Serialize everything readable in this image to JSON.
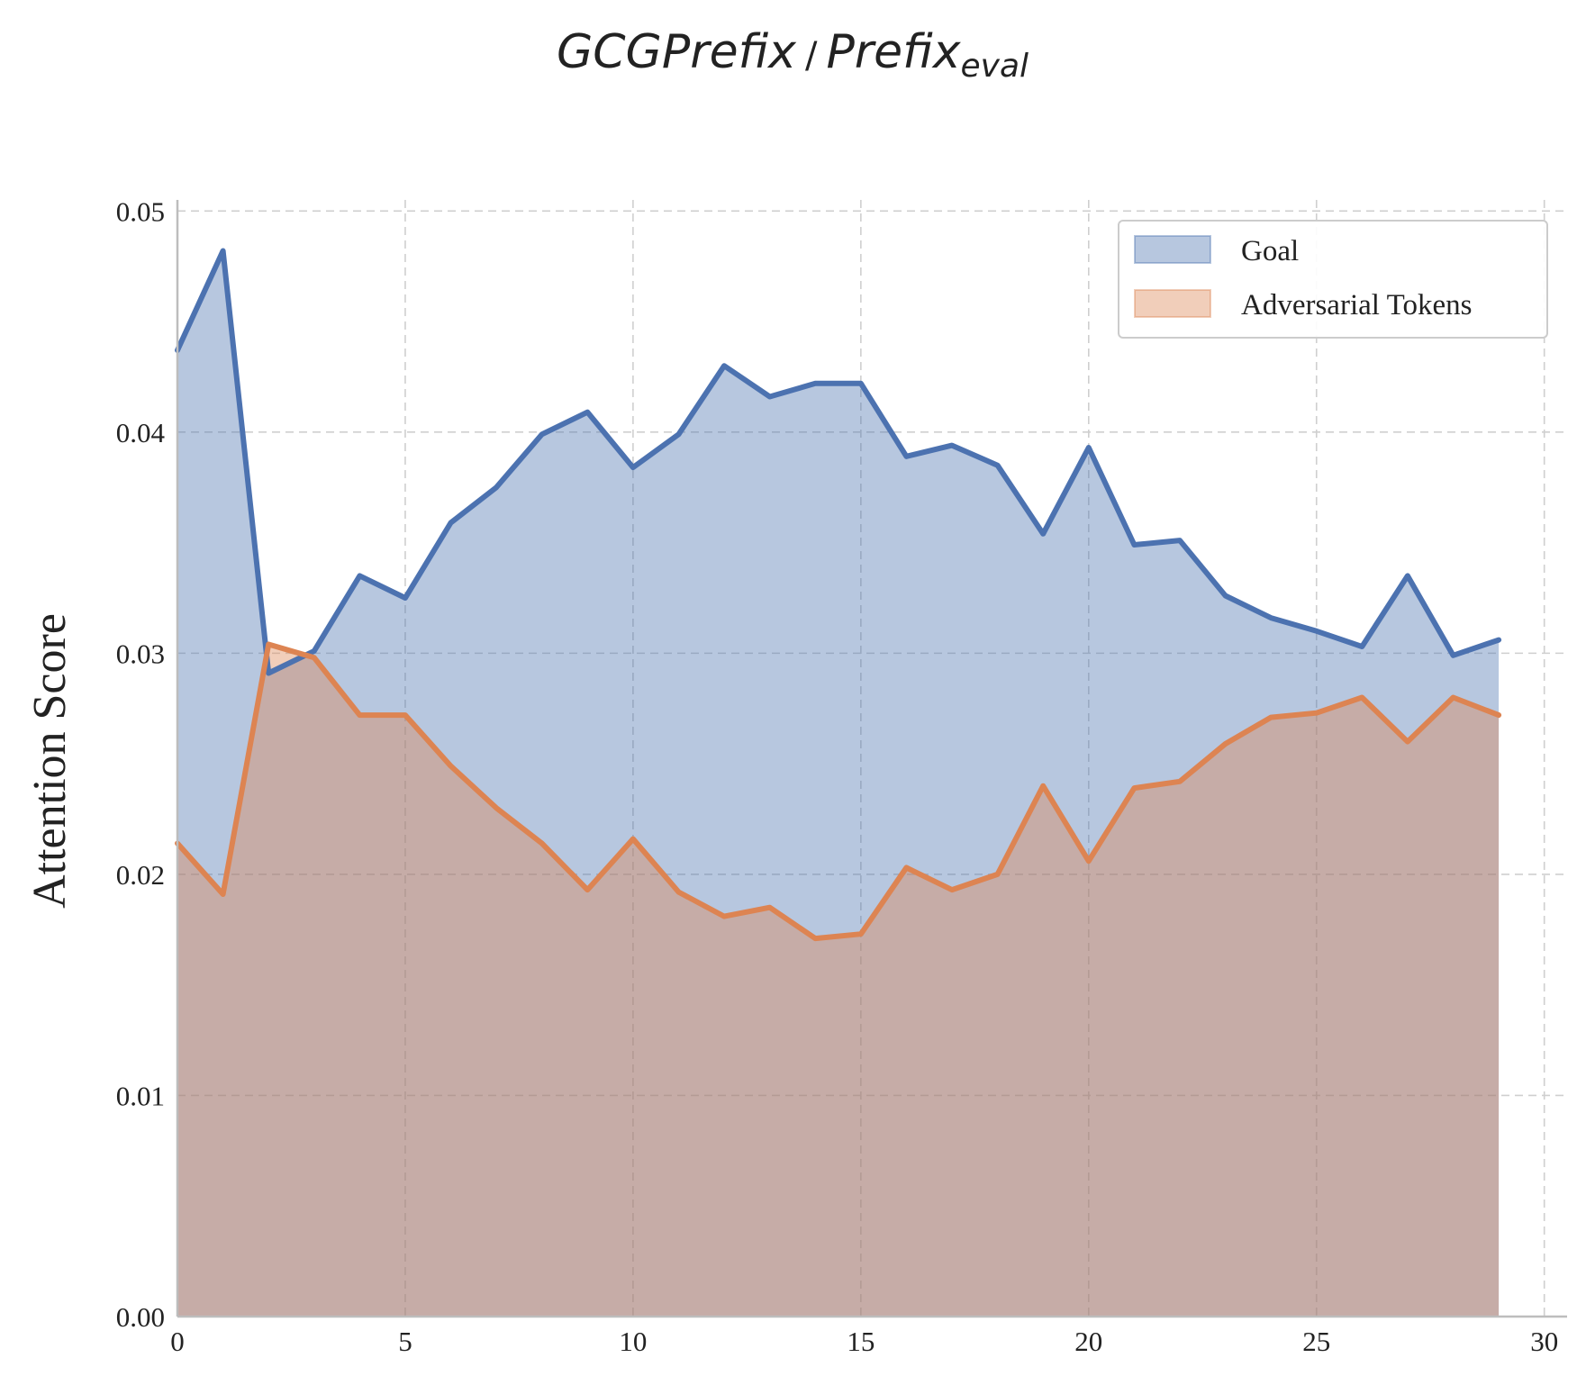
{
  "chart_data": {
    "type": "area",
    "title": {
      "left": "GCGPrefix",
      "separator": "/",
      "right": "Prefix",
      "right_subscript": "eval"
    },
    "xlabel": "",
    "ylabel": "Attention Score",
    "xlim": [
      0,
      30.5
    ],
    "ylim": [
      0,
      0.0505
    ],
    "xticks": [
      0,
      5,
      10,
      15,
      20,
      25,
      30
    ],
    "xtick_labels": [
      "0",
      "5",
      "10",
      "15",
      "20",
      "25",
      "30"
    ],
    "yticks": [
      0,
      0.01,
      0.02,
      0.03,
      0.04,
      0.05
    ],
    "ytick_labels": [
      "0.00",
      "0.01",
      "0.02",
      "0.03",
      "0.04",
      "0.05"
    ],
    "grid": true,
    "legend_position": "top-right",
    "x": [
      0,
      1,
      2,
      3,
      4,
      5,
      6,
      7,
      8,
      9,
      10,
      11,
      12,
      13,
      14,
      15,
      16,
      17,
      18,
      19,
      20,
      21,
      22,
      23,
      24,
      25,
      26,
      27,
      28,
      29
    ],
    "series": [
      {
        "name": "Goal",
        "line_color": "#4c72b0",
        "fill_color": "#4c72b0",
        "values": [
          0.0437,
          0.0482,
          0.0291,
          0.0301,
          0.0335,
          0.0325,
          0.0359,
          0.0375,
          0.0399,
          0.0409,
          0.0384,
          0.0399,
          0.043,
          0.0416,
          0.0422,
          0.0422,
          0.0389,
          0.0394,
          0.0385,
          0.0354,
          0.0393,
          0.0349,
          0.0351,
          0.0326,
          0.0316,
          0.031,
          0.0303,
          0.0335,
          0.0299,
          0.0306
        ]
      },
      {
        "name": "Adversarial Tokens",
        "line_color": "#dd8452",
        "fill_color": "#dd8452",
        "values": [
          0.0214,
          0.0191,
          0.0304,
          0.0298,
          0.0272,
          0.0272,
          0.0249,
          0.023,
          0.0214,
          0.0193,
          0.0216,
          0.0192,
          0.0181,
          0.0185,
          0.0171,
          0.0173,
          0.0203,
          0.0193,
          0.02,
          0.024,
          0.0206,
          0.0239,
          0.0242,
          0.0259,
          0.0271,
          0.0273,
          0.028,
          0.026,
          0.028,
          0.0272
        ]
      }
    ]
  }
}
